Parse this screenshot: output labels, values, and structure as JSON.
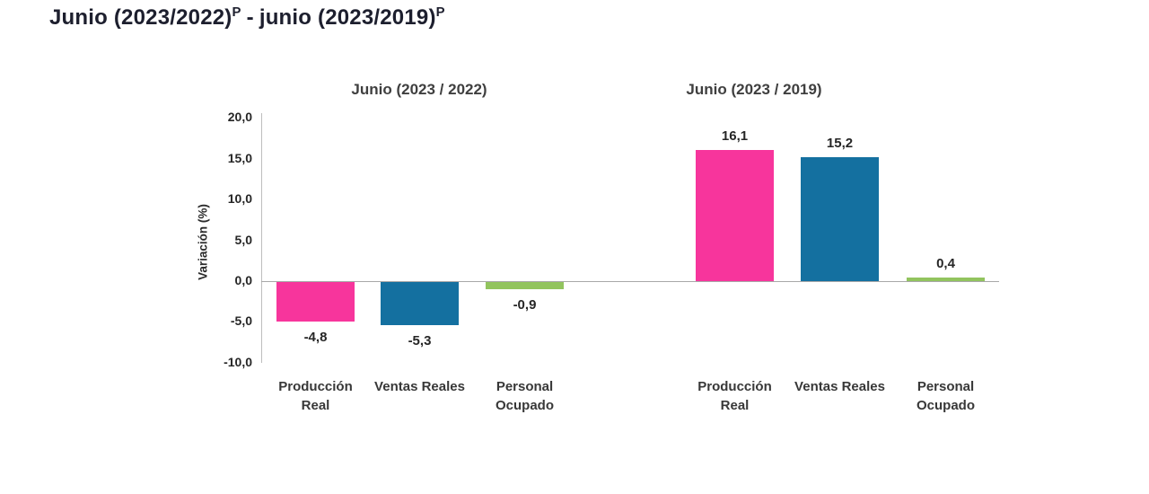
{
  "main_title": {
    "part1": "Junio (2023/2022)",
    "sup1": "P",
    "separator": "-",
    "part2": "junio (2023/2019)",
    "sup2": "P"
  },
  "chart_data": {
    "type": "bar",
    "title": "Junio (2023/2022)P - junio (2023/2019)P",
    "ylabel": "Variación (%)",
    "ylim": [
      -10,
      20
    ],
    "grid": false,
    "legend": "none",
    "decimal_style": "comma",
    "y_ticks": [
      {
        "label": "20,0",
        "value": 20
      },
      {
        "label": "15,0",
        "value": 15
      },
      {
        "label": "10,0",
        "value": 10
      },
      {
        "label": "5,0",
        "value": 5
      },
      {
        "label": "0,0",
        "value": 0
      },
      {
        "label": "-5,0",
        "value": -5
      },
      {
        "label": "-10,0",
        "value": -10
      }
    ],
    "series_colors": [
      "#f7359c",
      "#1470a0",
      "#92c45e"
    ],
    "panels": [
      {
        "title": "Junio (2023 / 2022)",
        "categories": [
          "Producción\nReal",
          "Ventas Reales",
          "Personal\nOcupado"
        ],
        "values": [
          -4.8,
          -5.3,
          -0.9
        ],
        "value_labels": [
          "-4,8",
          "-5,3",
          "-0,9"
        ]
      },
      {
        "title": "Junio (2023 / 2019)",
        "categories": [
          "Producción\nReal",
          "Ventas Reales",
          "Personal\nOcupado"
        ],
        "values": [
          16.1,
          15.2,
          0.4
        ],
        "value_labels": [
          "16,1",
          "15,2",
          "0,4"
        ]
      }
    ]
  }
}
